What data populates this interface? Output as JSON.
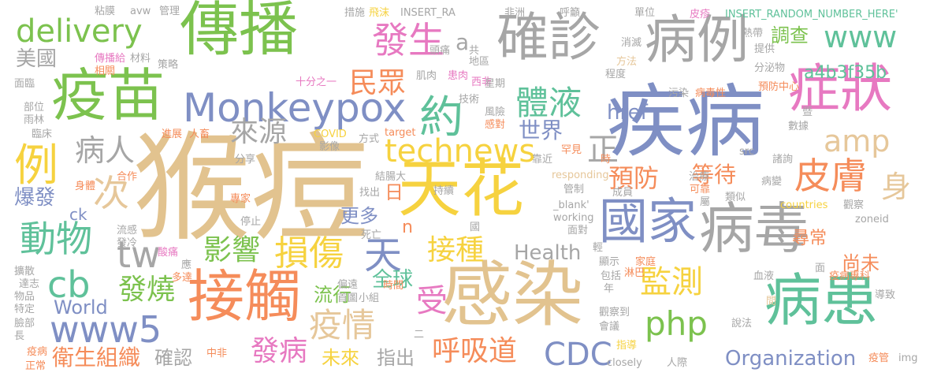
{
  "colors": {
    "tan": "#e2c38f",
    "yellow": "#f6d23f",
    "orange": "#f58c5a",
    "green": "#7cc24e",
    "pink": "#e779c1",
    "blue": "#7f8fc4",
    "gray": "#a6a6a6",
    "teal": "#5fc19a",
    "light_tan": "#e6c79a"
  },
  "words": {
    "hou_du": "猴痘",
    "tian_hua": "天花",
    "gan_ran": "感染",
    "ji_bing": "疾病",
    "chuan_bo": "傳播",
    "yi_miao": "疫苗",
    "guo_jia": "國家",
    "bing_du": "病毒",
    "jie_chu": "接觸",
    "bing_huan": "病患",
    "que_zhen": "確診",
    "bing_li": "病例",
    "zheng_zhuang": "症狀",
    "monkeypox": "Monkeypox",
    "technews": "technews",
    "delivery": "delivery",
    "www": "www",
    "www5": "www5",
    "fa_sheng": "發生",
    "min_zhong": "民眾",
    "ti_ye": "體液",
    "yue": "約",
    "li": "例",
    "ci": "次",
    "bing_ren": "病人",
    "lai_yuan": "來源",
    "zheng": "正",
    "amp": "amp",
    "a4b3f35b": "a4b3f35b",
    "diao_cha": "調查",
    "mei_guo": "美國",
    "href": "href",
    "shi_jie": "世界",
    "yu_fang": "預防",
    "deng_dai": "等待",
    "pi_fu": "皮膚",
    "shen": "身",
    "dong_wu": "動物",
    "bao_fa": "爆發",
    "cb": "cb",
    "ck": "ck",
    "tw": "tw",
    "ying_xiang": "影響",
    "sun_shang": "損傷",
    "tian": "天",
    "jie_zhong": "接種",
    "jian_ce": "監測",
    "xun_chang": "尋常",
    "shang_wei": "尚未",
    "ri": "日",
    "geng_duo": "更多",
    "n": "n",
    "health": "Health",
    "fa_shao": "發燒",
    "liu_xing": "流行",
    "quan_qiu": "全球",
    "shou": "受",
    "yi_qing": "疫情",
    "php": "php",
    "world": "World",
    "wei_sheng_zu_zhi": "衛生組織",
    "que_ren": "確認",
    "fa_bing": "發病",
    "wei_lai": "未來",
    "zhi_chu": "指出",
    "hu_xi_dao": "呼吸道",
    "cdc": "CDC",
    "organization": "Organization",
    "a": "a",
    "insert_random": "INSERT_RANDOM_NUMBER_HERE'",
    "insert_ra": "INSERT_RA",
    "avw": "avw",
    "nian_mo": "粘膜",
    "guan_li": "管理",
    "cuo_shi": "措施",
    "fei_quan": "飛沫",
    "fei_zhou": "非洲",
    "hu_xu": "呼籲",
    "dan_wei": "單位",
    "pi_zhen": "皮疹",
    "xiao_jian": "消滅",
    "ti_gong": "提供",
    "fen_mi_wu": "分泌物",
    "tou_tong": "頭痛",
    "di_qu": "地區",
    "fang_fa": "方法",
    "cheng_du": "程度",
    "xi_fei": "西非",
    "ji_rou": "肌肉",
    "huan_rou": "患肉",
    "shi_fen_zhi_yi": "十分之一",
    "xing_qi": "星期",
    "ji_shu": "技術",
    "feng_xian": "風險",
    "gan_ran2": "感對",
    "wu_ran": "污染",
    "bing_du_xing": "病毒性",
    "yu_fang_zhong_xin": "預防中心",
    "ji": "暨",
    "shu_ju": "數據",
    "chuan_bo_gei": "傳播給",
    "xiang_guan": "相關",
    "cai_liao": "材料",
    "ce_lue": "策略",
    "mian_lin": "面臨",
    "bu_wei": "部位",
    "yu_lin": "雨林",
    "lin_chuang": "臨床",
    "jin_zhan": "進展",
    "ren_chu": "人畜",
    "covid": "COVID",
    "ying_xiang2": "影像",
    "fang_shi": "方式",
    "target": "target",
    "kao_jin": "靠近",
    "han_jian": "罕見",
    "src": "src",
    "fen_xiang": "分享",
    "jie_chang_da": "結腸大",
    "responding": "responding",
    "he_zuo": "合作",
    "shen_ti": "身體",
    "zhuan_jia": "專家",
    "zhao_chu": "找出",
    "blank": "_blank'",
    "chi_xu": "持續",
    "guan_zhi": "管制",
    "cheng_yuan": "成員",
    "zhi_liao": "治療",
    "ke_kao": "可靠",
    "shu": "屬",
    "lei_si": "類似",
    "bing_bian": "病變",
    "zhu_ju": "諸詢",
    "guan_cha": "觀察",
    "zoneid": "zoneid",
    "countries": "countries",
    "working": "working",
    "guo": "國",
    "mian_dui": "面對",
    "ting_zhi": "停止",
    "liu_gan": "流感",
    "fa_leng": "發冷",
    "si_wang": "死亡",
    "suan_tong": "酸痛",
    "ying": "應",
    "kuo_san": "擴散",
    "da_dao": "達志",
    "wu_pin": "物品",
    "te_ding": "特定",
    "lian_bu": "臉部",
    "zhang": "長",
    "yi_bing": "疫病",
    "zheng_chang": "正常",
    "duo_da": "多達",
    "zhong_fei": "中非",
    "pian_dao": "偏遠",
    "shou_ye": "首圖",
    "xiao_zu": "小組",
    "shi_jian": "時間",
    "er": "二",
    "nian": "年",
    "qing": "輕",
    "xian_shi": "顯示",
    "bao_kuo": "包括",
    "jia_ting": "家庭",
    "lin_ba": "淋巴",
    "xue_ye": "血液",
    "gua_cha_dao": "觀察到",
    "hui_yi": "會議",
    "mian": "面",
    "yi_bing_zhuan_ke": "疫病專科",
    "dao_zhi": "導致",
    "shuo_fa": "說法",
    "zhi_dao": "指導",
    "fan_ji": "疫管",
    "jian": "間",
    "closely": "closely",
    "ren_ji": "人際",
    "img": "img",
    "shi": "時",
    "gong": "共",
    "re_dai": "熱帶",
    "chuan": "傳",
    "bing_li2": "病痘"
  }
}
